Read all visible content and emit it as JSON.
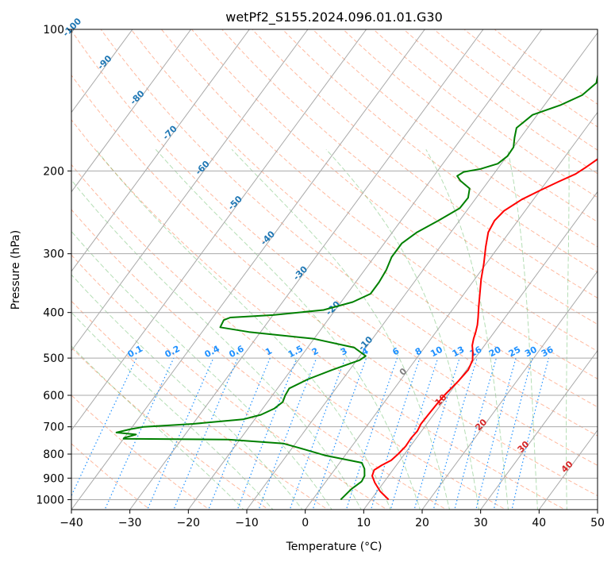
{
  "chart_data": {
    "type": "line",
    "title": "wetPf2_S155.2024.096.01.01.G30",
    "xlabel": "Temperature (°C)",
    "ylabel": "Pressure (hPa)",
    "xlim": [
      -40,
      50
    ],
    "ylim": [
      1050,
      100
    ],
    "y_scale": "log",
    "grid": true,
    "x_ticks": [
      -40,
      -30,
      -20,
      -10,
      0,
      10,
      20,
      30,
      40,
      50
    ],
    "y_ticks": [
      1000,
      900,
      800,
      700,
      600,
      500,
      400,
      300,
      200,
      100
    ],
    "series": [
      {
        "name": "",
        "color": "#ff0000",
        "points": [
          [
            13,
            1000
          ],
          [
            10.5,
            960
          ],
          [
            8.5,
            920
          ],
          [
            7.2,
            890
          ],
          [
            6.8,
            865
          ],
          [
            7.5,
            845
          ],
          [
            8.5,
            825
          ],
          [
            8.9,
            800
          ],
          [
            9.2,
            770
          ],
          [
            9.1,
            740
          ],
          [
            9.3,
            715
          ],
          [
            9.0,
            690
          ],
          [
            9.1,
            660
          ],
          [
            9.2,
            630
          ],
          [
            9.4,
            600
          ],
          [
            10.0,
            560
          ],
          [
            10.3,
            530
          ],
          [
            9.8,
            505
          ],
          [
            8.8,
            485
          ],
          [
            7.9,
            470
          ],
          [
            7.3,
            455
          ],
          [
            6.8,
            440
          ],
          [
            6.2,
            425
          ],
          [
            5.4,
            410
          ],
          [
            4.2,
            390
          ],
          [
            2.7,
            365
          ],
          [
            1.1,
            340
          ],
          [
            -0.4,
            315
          ],
          [
            -2.2,
            290
          ],
          [
            -3.6,
            270
          ],
          [
            -4.0,
            255
          ],
          [
            -3.6,
            243
          ],
          [
            -2.0,
            230
          ],
          [
            0.0,
            220
          ],
          [
            2.0,
            211
          ],
          [
            4.0,
            203
          ],
          [
            5.0,
            196
          ],
          [
            6.0,
            188
          ],
          [
            7.5,
            180
          ],
          [
            8.6,
            172
          ],
          [
            9.6,
            163
          ],
          [
            10.2,
            155
          ],
          [
            10.6,
            146
          ],
          [
            11.1,
            138
          ],
          [
            12.2,
            130
          ],
          [
            13.6,
            124
          ],
          [
            15.0,
            118
          ],
          [
            16.0,
            112
          ],
          [
            17.0,
            106
          ],
          [
            18.2,
            100
          ]
        ]
      },
      {
        "name": "",
        "color": "#008000",
        "points": [
          [
            4.8,
            1000
          ],
          [
            5.3,
            950
          ],
          [
            6.1,
            915
          ],
          [
            5.9,
            890
          ],
          [
            5.0,
            860
          ],
          [
            3.8,
            835
          ],
          [
            -3.5,
            805
          ],
          [
            -9.0,
            775
          ],
          [
            -12.0,
            760
          ],
          [
            -22.0,
            745
          ],
          [
            -40.0,
            742
          ],
          [
            -40.0,
            739
          ],
          [
            -38.4,
            727
          ],
          [
            -42.0,
            720
          ],
          [
            -40.0,
            708
          ],
          [
            -38.0,
            700
          ],
          [
            -30.0,
            690
          ],
          [
            -22.0,
            675
          ],
          [
            -19.5,
            660
          ],
          [
            -18.0,
            640
          ],
          [
            -17.4,
            620
          ],
          [
            -17.8,
            600
          ],
          [
            -18.0,
            580
          ],
          [
            -16.0,
            555
          ],
          [
            -13.0,
            530
          ],
          [
            -9.5,
            505
          ],
          [
            -9.0,
            495
          ],
          [
            -12.0,
            475
          ],
          [
            -20.0,
            455
          ],
          [
            -32.0,
            440
          ],
          [
            -37.5,
            430
          ],
          [
            -37.8,
            415
          ],
          [
            -37.0,
            410
          ],
          [
            -30.0,
            405
          ],
          [
            -22.0,
            395
          ],
          [
            -18.0,
            380
          ],
          [
            -16.0,
            365
          ],
          [
            -16.0,
            345
          ],
          [
            -16.3,
            325
          ],
          [
            -17.0,
            305
          ],
          [
            -17.0,
            285
          ],
          [
            -15.8,
            270
          ],
          [
            -13.6,
            255
          ],
          [
            -11.5,
            240
          ],
          [
            -11.4,
            228
          ],
          [
            -12.3,
            218
          ],
          [
            -14.8,
            210
          ],
          [
            -16.0,
            205
          ],
          [
            -15.4,
            201
          ],
          [
            -12.9,
            198
          ],
          [
            -10.6,
            193
          ],
          [
            -9.9,
            186
          ],
          [
            -10.0,
            178
          ],
          [
            -11.0,
            170
          ],
          [
            -11.9,
            162
          ],
          [
            -10.8,
            152
          ],
          [
            -7.3,
            145
          ],
          [
            -4.8,
            138
          ],
          [
            -3.9,
            130
          ],
          [
            -4.8,
            124
          ],
          [
            -5.7,
            118
          ],
          [
            -5.6,
            112
          ],
          [
            -3.5,
            106
          ],
          [
            -1.0,
            100
          ]
        ]
      }
    ],
    "isotherm_labels": [
      "-100",
      "-90",
      "-80",
      "-70",
      "-60",
      "-50",
      "-40",
      "-30",
      "-20",
      "-10",
      "0",
      "10",
      "20",
      "30",
      "40"
    ],
    "mixing_ratio_labels": [
      "0.1",
      "0.2",
      "0.4",
      "0.6",
      "1",
      "1.5",
      "2",
      "3",
      "4",
      "6",
      "8",
      "10",
      "13",
      "16",
      "20",
      "25",
      "30",
      "36"
    ]
  },
  "colors": {
    "isotherm": "#a9a9a9",
    "isobar": "#a9a9a9",
    "dry_adiabat": "#ff7f50",
    "moist_adiabat": "#2ca02c",
    "mixing_ratio": "#1e90ff",
    "label_cold": "#1f77b4",
    "label_zero": "#808080",
    "label_warm": "#d62728"
  }
}
